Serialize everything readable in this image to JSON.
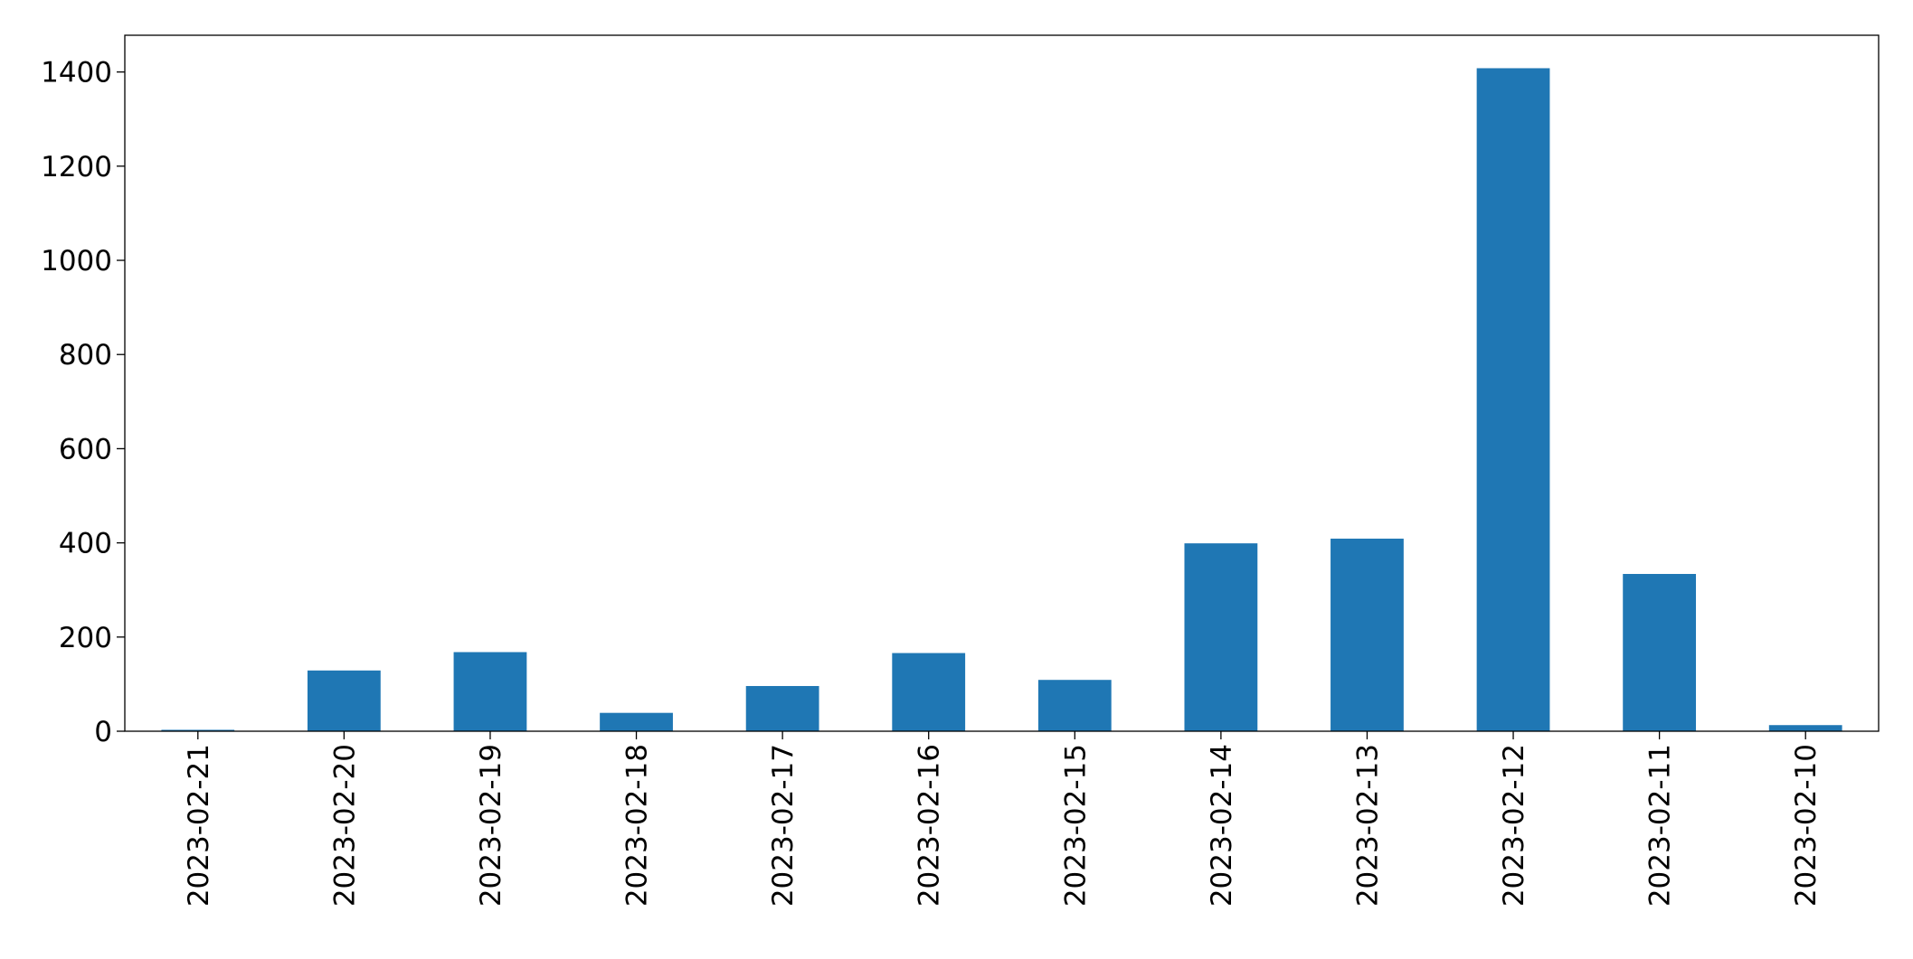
{
  "chart_data": {
    "type": "bar",
    "categories": [
      "2023-02-21",
      "2023-02-20",
      "2023-02-19",
      "2023-02-18",
      "2023-02-17",
      "2023-02-16",
      "2023-02-15",
      "2023-02-14",
      "2023-02-13",
      "2023-02-12",
      "2023-02-11",
      "2023-02-10"
    ],
    "values": [
      3,
      129,
      168,
      39,
      96,
      166,
      109,
      399,
      409,
      1408,
      334,
      13
    ],
    "color": "#1f77b4",
    "ylim": [
      0,
      1478
    ],
    "yticks": [
      0,
      200,
      400,
      600,
      800,
      1000,
      1200,
      1400
    ],
    "grid": false
  }
}
